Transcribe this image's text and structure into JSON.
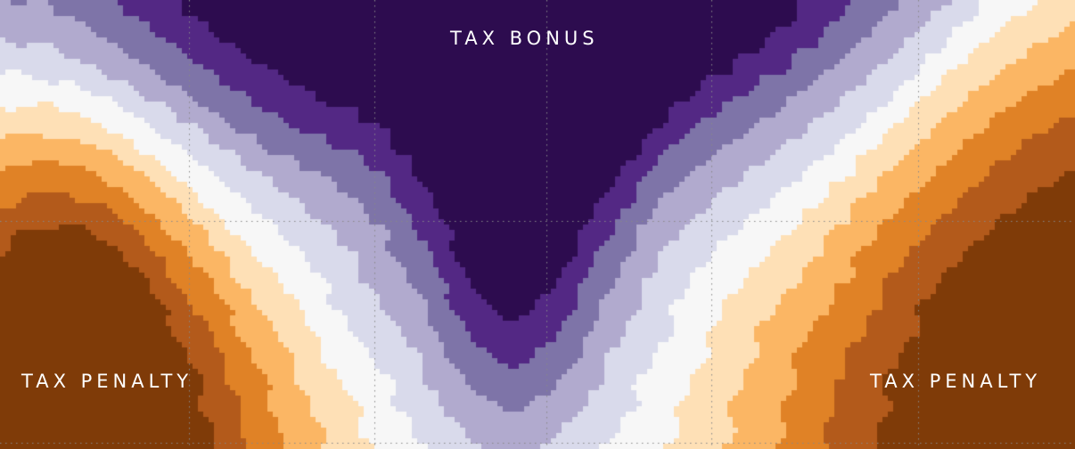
{
  "chart_data": {
    "type": "heatmap",
    "title": "",
    "xlabel": "",
    "ylabel": "",
    "grid": true,
    "legend": "none",
    "colors": {
      "bonus_5": "#2d0c4f",
      "bonus_4": "#532884",
      "bonus_3": "#7e74a8",
      "bonus_2": "#b1aace",
      "bonus_1": "#d9daeb",
      "neutral": "#f7f7f7",
      "penalty_1": "#fee0b6",
      "penalty_2": "#fbb664",
      "penalty_3": "#e08226",
      "penalty_4": "#b35a1b",
      "penalty_5": "#7f3b08"
    },
    "grid_color": "#888888",
    "annotations": [
      {
        "id": "bonus",
        "text": "TAX BONUS"
      },
      {
        "id": "penalty_left",
        "text": "TAX PENALTY"
      },
      {
        "id": "penalty_right",
        "text": "TAX PENALTY"
      }
    ]
  }
}
